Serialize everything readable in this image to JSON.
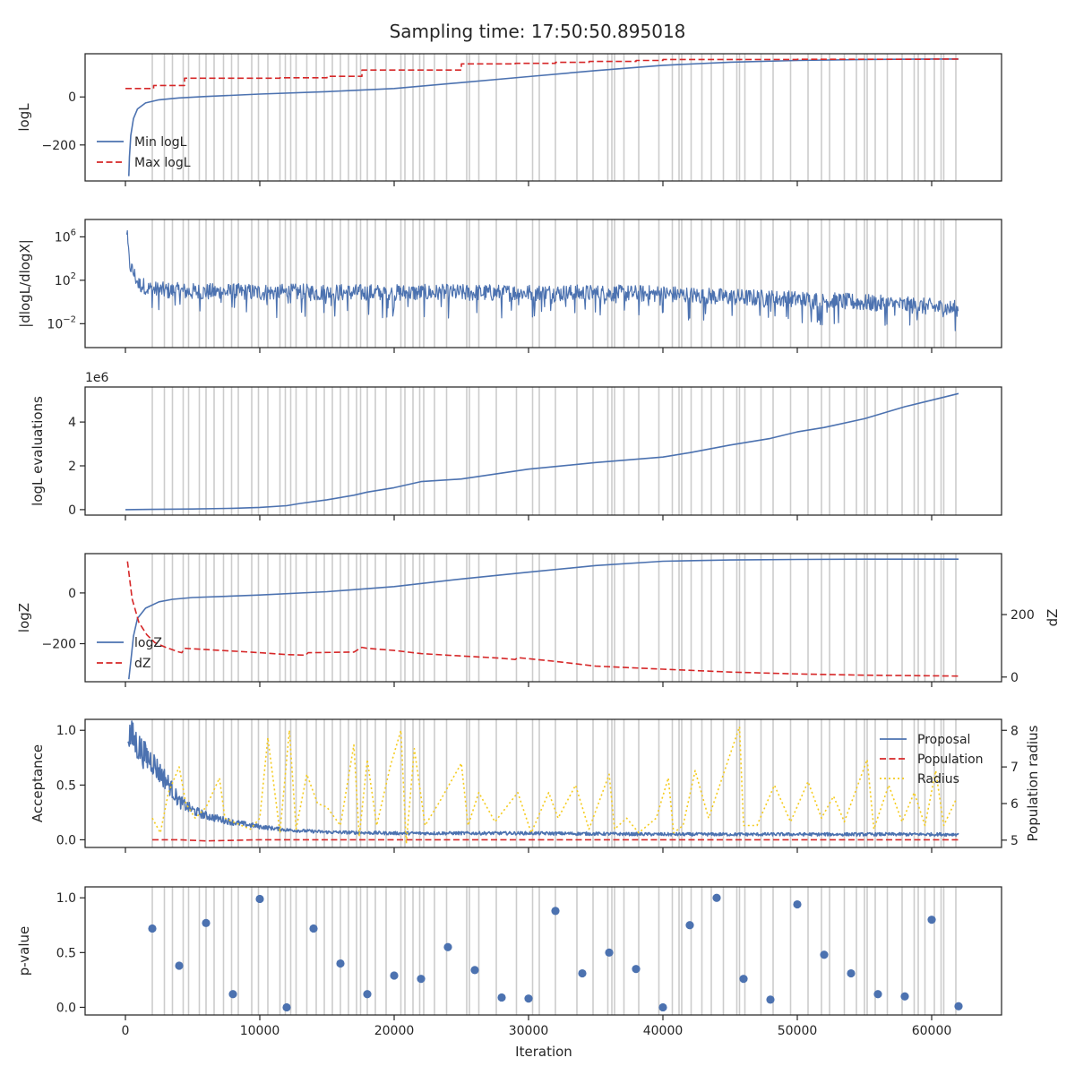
{
  "figure": {
    "title": "Sampling time: 17:50:50.895018",
    "xlabel": "Iteration",
    "xlim": [
      -3000,
      65200
    ],
    "xticks": [
      0,
      10000,
      20000,
      30000,
      40000,
      50000,
      60000
    ],
    "vlines": [
      2000,
      2900,
      3500,
      4300,
      4700,
      5500,
      6000,
      6600,
      7300,
      7900,
      8400,
      9400,
      9900,
      10600,
      11500,
      11900,
      12300,
      12700,
      13500,
      14200,
      14800,
      15400,
      16000,
      16600,
      17200,
      17500,
      18000,
      18600,
      19400,
      20500,
      20800,
      21400,
      21900,
      22200,
      23000,
      23900,
      25400,
      25600,
      26300,
      27600,
      29100,
      30300,
      30800,
      32000,
      33600,
      34800,
      35900,
      36200,
      36400,
      37100,
      38200,
      39700,
      40700,
      41200,
      41400,
      42100,
      42900,
      43600,
      44500,
      45500,
      45700,
      46100,
      47300,
      48200,
      49500,
      50800,
      51800,
      52400,
      53500,
      54400,
      55000,
      55200,
      55800,
      56700,
      57800,
      58700,
      59000,
      59500,
      60200,
      60700,
      60900,
      61800
    ]
  },
  "chart_data": [
    {
      "type": "line",
      "ylabel": "logL",
      "ylim": [
        -350,
        180
      ],
      "yticks": [
        0,
        -200
      ],
      "ytick_labels": [
        "0",
        "−200"
      ],
      "legend": "lower-left",
      "series": [
        {
          "name": "Min logL",
          "color": "#4c72b0",
          "style": "solid",
          "x": [
            250,
            300,
            400,
            600,
            900,
            1500,
            2500,
            4000,
            6000,
            10000,
            15000,
            20000,
            25000,
            30000,
            35000,
            40000,
            45000,
            50000,
            55000,
            60000,
            62000
          ],
          "y": [
            -330,
            -250,
            -160,
            -90,
            -50,
            -25,
            -12,
            -4,
            2,
            12,
            22,
            35,
            60,
            85,
            110,
            132,
            145,
            152,
            156,
            158,
            158
          ]
        },
        {
          "name": "Max logL",
          "color": "#d62728",
          "style": "dashed",
          "step": true,
          "x": [
            0,
            2000,
            2100,
            4200,
            4400,
            9300,
            11500,
            15000,
            17200,
            17600,
            25000,
            29000,
            32000,
            34500,
            38000,
            40000,
            45000,
            50000,
            55000,
            60000,
            62000
          ],
          "y": [
            35,
            35,
            48,
            48,
            78,
            78,
            80,
            86,
            86,
            112,
            138,
            140,
            144,
            148,
            152,
            156,
            156,
            157,
            157,
            158,
            158
          ]
        }
      ]
    },
    {
      "type": "line",
      "ylabel": "|dlogL/dlogX|",
      "yscale": "log",
      "ylim_log10": [
        -4.2,
        7.6
      ],
      "yticks_log10": [
        6,
        2,
        -2
      ],
      "ytick_labels": [
        "10⁶",
        "10²",
        "10⁻²"
      ],
      "series": [
        {
          "name": "",
          "color": "#4c72b0",
          "style": "solid",
          "noisy": true,
          "x": [
            100,
            300,
            1000,
            2000,
            3000,
            5000,
            10000,
            20000,
            30000,
            40000,
            45000,
            50000,
            55000,
            60000,
            62000
          ],
          "y_log10": [
            6.5,
            3.5,
            1.6,
            1.3,
            1.2,
            1.1,
            1.05,
            1.0,
            1.0,
            0.9,
            0.6,
            0.4,
            0.1,
            -0.3,
            -0.5
          ]
        }
      ]
    },
    {
      "type": "line",
      "ylabel": "logL evaluations",
      "offset_label": "1e6",
      "ylim": [
        -0.25,
        5.6
      ],
      "yticks": [
        0,
        2,
        4
      ],
      "ytick_labels": [
        "0",
        "2",
        "4"
      ],
      "series": [
        {
          "name": "",
          "color": "#4c72b0",
          "style": "solid",
          "x": [
            0,
            2000,
            5000,
            8000,
            10000,
            12000,
            13000,
            15000,
            17000,
            18000,
            20000,
            22000,
            25000,
            30000,
            35000,
            40000,
            42000,
            45000,
            48000,
            50000,
            52000,
            55000,
            58000,
            60000,
            62000
          ],
          "y": [
            0,
            0.01,
            0.03,
            0.06,
            0.1,
            0.18,
            0.28,
            0.45,
            0.66,
            0.8,
            1.0,
            1.28,
            1.4,
            1.85,
            2.15,
            2.4,
            2.6,
            2.95,
            3.25,
            3.55,
            3.75,
            4.15,
            4.7,
            5.0,
            5.3
          ]
        }
      ]
    },
    {
      "type": "line",
      "ylabel": "logZ",
      "ylim": [
        -350,
        155
      ],
      "yticks": [
        0,
        -200
      ],
      "ytick_labels": [
        "0",
        "−200"
      ],
      "ylabel_right": "dZ",
      "ylim_right": [
        -15,
        395
      ],
      "yticks_right": [
        200,
        0
      ],
      "ytick_labels_right": [
        "200",
        "0"
      ],
      "legend": "lower-left",
      "series": [
        {
          "name": "logZ",
          "color": "#4c72b0",
          "style": "solid",
          "x": [
            250,
            400,
            600,
            900,
            1500,
            2500,
            3500,
            5000,
            7000,
            10000,
            15000,
            20000,
            25000,
            30000,
            35000,
            40000,
            45000,
            50000,
            55000,
            60000,
            62000
          ],
          "y": [
            -340,
            -270,
            -170,
            -100,
            -60,
            -35,
            -25,
            -18,
            -14,
            -8,
            5,
            25,
            55,
            82,
            108,
            125,
            130,
            132,
            133,
            133,
            133
          ]
        },
        {
          "name": "dZ",
          "color": "#d62728",
          "style": "dashed",
          "axis": "right",
          "x": [
            150,
            500,
            1000,
            1600,
            2200,
            3000,
            4000,
            4200,
            4400,
            6000,
            8000,
            10000,
            12000,
            13400,
            13600,
            17000,
            17600,
            18000,
            20000,
            22000,
            24000,
            26000,
            28000,
            29000,
            29200,
            32000,
            35000,
            40000,
            45000,
            50000,
            55000,
            60000,
            62000
          ],
          "y": [
            370,
            250,
            175,
            135,
            110,
            95,
            80,
            78,
            92,
            88,
            83,
            78,
            72,
            70,
            78,
            80,
            95,
            92,
            85,
            75,
            70,
            65,
            60,
            56,
            62,
            50,
            35,
            25,
            16,
            10,
            6,
            4,
            3
          ]
        }
      ]
    },
    {
      "type": "line",
      "ylabel": "Acceptance",
      "ylim": [
        -0.07,
        1.1
      ],
      "yticks": [
        1.0,
        0.5,
        0.0
      ],
      "ytick_labels": [
        "1.0",
        "0.5",
        "0.0"
      ],
      "ylabel_right": "Population radius",
      "ylim_right": [
        4.8,
        8.3
      ],
      "yticks_right": [
        8,
        7,
        6,
        5
      ],
      "ytick_labels_right": [
        "8",
        "7",
        "6",
        "5"
      ],
      "legend": "upper-right",
      "series": [
        {
          "name": "Proposal",
          "color": "#4c72b0",
          "style": "solid",
          "noisy": true,
          "x": [
            200,
            800,
            1500,
            2000,
            2500,
            3000,
            3500,
            4000,
            5000,
            6000,
            8000,
            10000,
            12000,
            15000,
            20000,
            25000,
            30000,
            40000,
            50000,
            60000,
            62000
          ],
          "y": [
            0.98,
            0.88,
            0.76,
            0.72,
            0.62,
            0.55,
            0.45,
            0.35,
            0.27,
            0.22,
            0.16,
            0.12,
            0.09,
            0.07,
            0.06,
            0.06,
            0.06,
            0.05,
            0.05,
            0.05,
            0.05
          ]
        },
        {
          "name": "Population",
          "color": "#d62728",
          "style": "dashed",
          "x": [
            2000,
            4000,
            6000,
            10000,
            20000,
            30000,
            40000,
            50000,
            60000,
            62000
          ],
          "y": [
            0.0,
            0.0,
            -0.01,
            0.0,
            0.0,
            0.0,
            0.0,
            0.0,
            0.0,
            0.0
          ]
        },
        {
          "name": "Radius",
          "color": "#f5cb1e",
          "style": "dotted",
          "axis": "right",
          "x": [
            2000,
            2600,
            3200,
            4000,
            4500,
            5200,
            6000,
            7000,
            7400,
            8000,
            9300,
            10000,
            10600,
            11500,
            12200,
            12700,
            13500,
            14300,
            15000,
            16000,
            17000,
            17400,
            18000,
            18700,
            19700,
            20500,
            20900,
            21500,
            22300,
            23300,
            25000,
            25500,
            26300,
            27500,
            29200,
            30200,
            31500,
            32200,
            33500,
            34500,
            36000,
            36400,
            37300,
            38200,
            39500,
            40400,
            40800,
            41500,
            42400,
            43400,
            44500,
            45700,
            46000,
            47000,
            48300,
            49500,
            50800,
            51800,
            52700,
            53500,
            54500,
            55200,
            55700,
            56800,
            57800,
            58700,
            59500,
            60300,
            60900,
            61800
          ],
          "y": [
            5.6,
            5.2,
            6.3,
            7.0,
            6.0,
            5.6,
            5.9,
            6.7,
            5.6,
            5.5,
            5.3,
            5.6,
            7.8,
            5.2,
            8.0,
            5.3,
            6.8,
            6.0,
            5.9,
            5.4,
            7.6,
            5.1,
            7.2,
            5.4,
            7.0,
            8.0,
            4.9,
            7.5,
            5.4,
            6.0,
            7.1,
            5.4,
            6.3,
            5.5,
            6.3,
            5.2,
            6.3,
            5.6,
            6.5,
            5.3,
            6.8,
            5.3,
            5.6,
            5.2,
            5.6,
            6.7,
            5.2,
            5.4,
            6.9,
            5.6,
            6.8,
            8.1,
            5.4,
            5.4,
            6.5,
            5.5,
            6.6,
            5.6,
            6.2,
            5.5,
            6.5,
            7.2,
            5.3,
            6.5,
            5.5,
            6.3,
            5.4,
            6.9,
            5.4,
            6.1
          ]
        }
      ]
    },
    {
      "type": "scatter",
      "ylabel": "p-value",
      "ylim": [
        -0.07,
        1.1
      ],
      "yticks": [
        1.0,
        0.5,
        0.0
      ],
      "ytick_labels": [
        "1.0",
        "0.5",
        "0.0"
      ],
      "series": [
        {
          "name": "",
          "color": "#4c72b0",
          "x": [
            2000,
            4000,
            6000,
            8000,
            10000,
            12000,
            14000,
            16000,
            18000,
            20000,
            22000,
            24000,
            26000,
            28000,
            30000,
            32000,
            34000,
            36000,
            38000,
            40000,
            42000,
            44000,
            46000,
            48000,
            50000,
            52000,
            54000,
            56000,
            58000,
            60000,
            62000
          ],
          "y": [
            0.72,
            0.38,
            0.77,
            0.12,
            0.99,
            0.0,
            0.72,
            0.4,
            0.12,
            0.29,
            0.26,
            0.55,
            0.34,
            0.09,
            0.08,
            0.88,
            0.31,
            0.5,
            0.35,
            0.0,
            0.75,
            1.0,
            0.26,
            0.07,
            0.94,
            0.48,
            0.31,
            0.12,
            0.1,
            0.8,
            0.01
          ]
        }
      ]
    }
  ]
}
